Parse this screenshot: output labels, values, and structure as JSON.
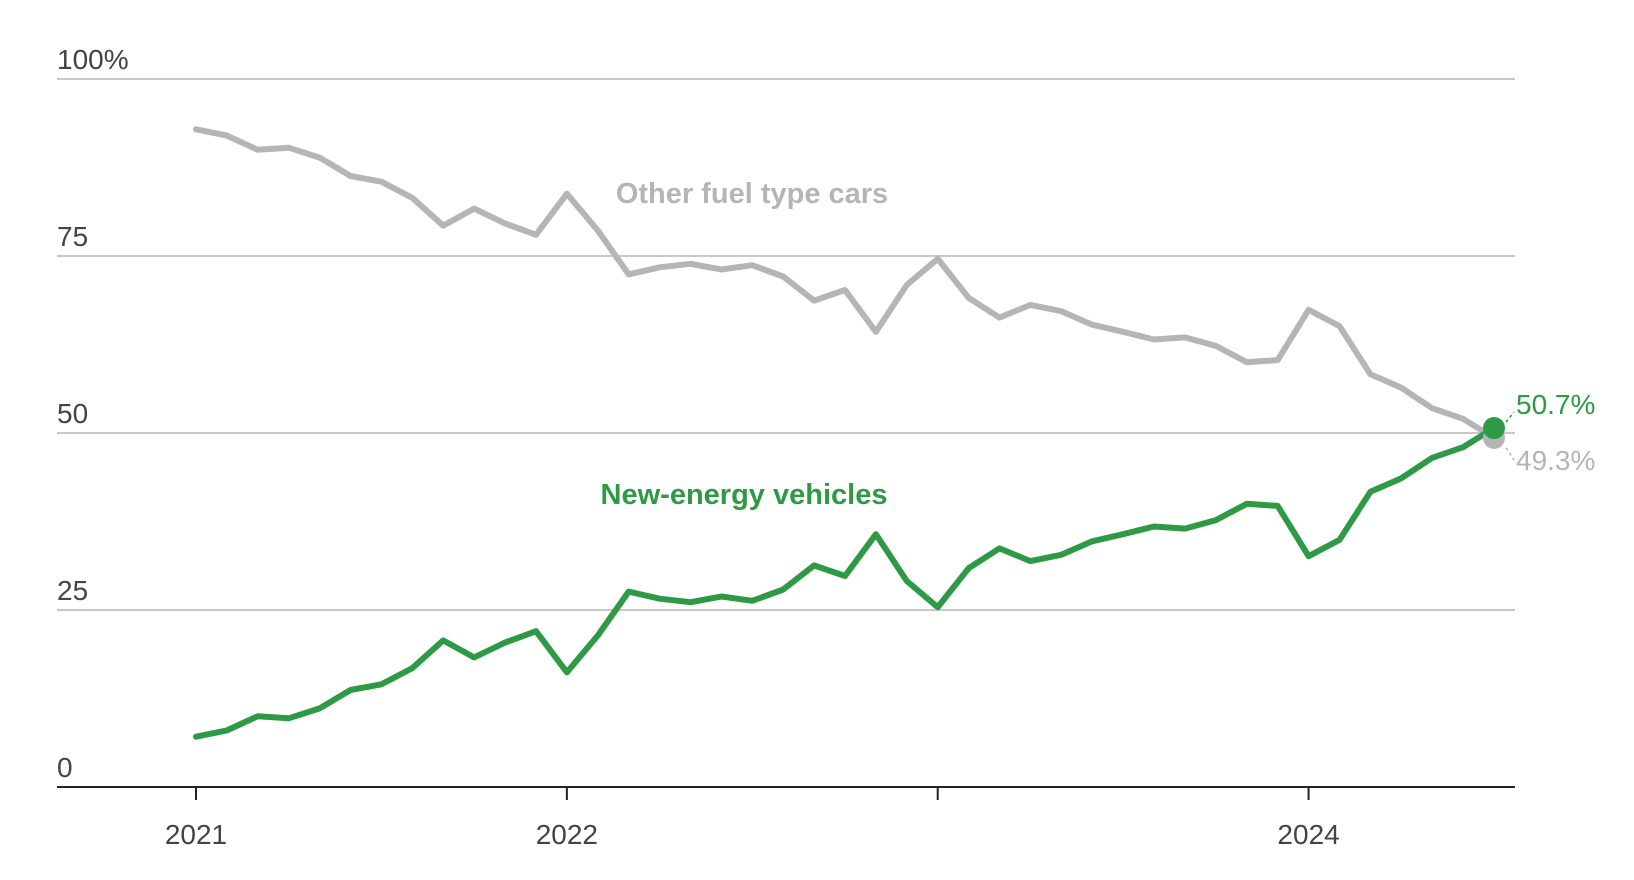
{
  "chart_data": {
    "type": "line",
    "categories": [
      "2021",
      null,
      null,
      null,
      null,
      null,
      null,
      null,
      null,
      null,
      null,
      null,
      "2022",
      null,
      null,
      null,
      null,
      null,
      null,
      null,
      null,
      null,
      null,
      null,
      null,
      null,
      null,
      null,
      null,
      null,
      null,
      null,
      null,
      null,
      null,
      null,
      "2024",
      null,
      null,
      null,
      null,
      null,
      null
    ],
    "series": [
      {
        "name": "Other fuel type cars",
        "color": "#b5b5b5",
        "values": [
          92.9,
          92.0,
          90.0,
          90.3,
          88.9,
          86.3,
          85.5,
          83.2,
          79.3,
          81.7,
          79.6,
          78.0,
          83.8,
          78.6,
          72.4,
          73.4,
          73.9,
          73.1,
          73.7,
          72.1,
          68.7,
          70.2,
          64.3,
          70.9,
          74.6,
          69.1,
          66.3,
          68.1,
          67.2,
          65.3,
          64.3,
          63.2,
          63.5,
          62.3,
          60.0,
          60.3,
          67.4,
          65.1,
          58.3,
          56.4,
          53.5,
          52.0,
          49.3
        ],
        "value_labels": [
          null,
          null,
          null,
          null,
          null,
          null,
          null,
          null,
          null,
          null,
          null,
          null,
          null,
          null,
          null,
          null,
          null,
          null,
          null,
          null,
          null,
          null,
          null,
          null,
          null,
          null,
          null,
          null,
          null,
          null,
          null,
          null,
          null,
          null,
          null,
          null,
          null,
          null,
          null,
          null,
          null,
          null,
          "49.3%"
        ]
      },
      {
        "name": "New-energy vehicles",
        "color": "#2e9a45",
        "values": [
          7.1,
          8.0,
          10.0,
          9.7,
          11.1,
          13.7,
          14.5,
          16.8,
          20.7,
          18.3,
          20.4,
          22.0,
          16.2,
          21.4,
          27.6,
          26.6,
          26.1,
          26.9,
          26.3,
          27.9,
          31.3,
          29.8,
          35.7,
          29.1,
          25.4,
          30.9,
          33.7,
          31.9,
          32.8,
          34.7,
          35.7,
          36.8,
          36.5,
          37.7,
          40.0,
          39.7,
          32.6,
          34.9,
          41.7,
          43.6,
          46.5,
          48.0,
          50.7
        ],
        "value_labels": [
          null,
          null,
          null,
          null,
          null,
          null,
          null,
          null,
          null,
          null,
          null,
          null,
          null,
          null,
          null,
          null,
          null,
          null,
          null,
          null,
          null,
          null,
          null,
          null,
          null,
          null,
          null,
          null,
          null,
          null,
          null,
          null,
          null,
          null,
          null,
          null,
          null,
          null,
          null,
          null,
          null,
          null,
          "50.7%"
        ]
      }
    ],
    "ylim": [
      0,
      100
    ],
    "yticks": [
      0,
      25,
      50,
      {
        "value": 100,
        "label": "100%"
      },
      75
    ],
    "xtick_indices": [
      0,
      12,
      24,
      36
    ],
    "grid": true
  }
}
